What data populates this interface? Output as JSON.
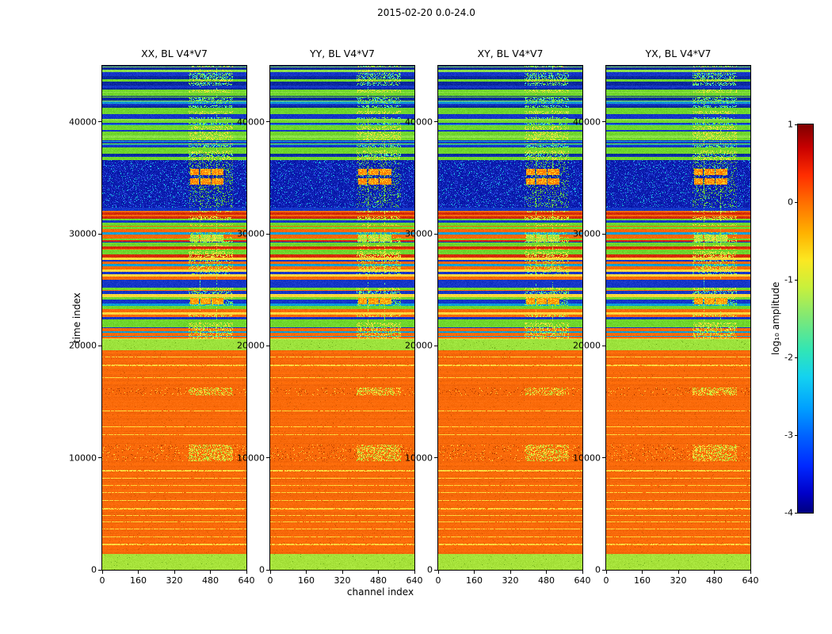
{
  "figure": {
    "title": "2015-02-20 0.0-24.0"
  },
  "axes": {
    "xlabel": "channel index",
    "ylabel": "time index",
    "x_ticks": [
      0,
      160,
      320,
      480,
      640
    ],
    "y_ticks": [
      0,
      10000,
      20000,
      30000,
      40000
    ],
    "x_range": [
      0,
      640
    ],
    "y_range": [
      0,
      45000
    ]
  },
  "panels": [
    {
      "title": "XX, BL V4*V7"
    },
    {
      "title": "YY, BL V4*V7"
    },
    {
      "title": "XY, BL V4*V7"
    },
    {
      "title": "YX, BL V4*V7"
    }
  ],
  "colorbar": {
    "label": "log₁₀ amplitude",
    "ticks": [
      "1",
      "0",
      "-1",
      "-2",
      "-3",
      "-4"
    ],
    "min": -4,
    "max": 1,
    "colormap": "jet"
  },
  "chart_data": {
    "type": "heatmap",
    "title": "2015-02-20 0.0-24.0",
    "subplots": [
      "XX, BL V4*V7",
      "YY, BL V4*V7",
      "XY, BL V4*V7",
      "YX, BL V4*V7"
    ],
    "xlabel": "channel index",
    "ylabel": "time index",
    "xlim": [
      0,
      640
    ],
    "ylim": [
      0,
      45000
    ],
    "colorbar_label": "log10 amplitude",
    "colorbar_range": [
      -4,
      1
    ],
    "colormap": "jet",
    "summary": "Four nearly identical waterfall plots (polarizations XX, YY, XY, YX of baseline V4*V7) of log10 visibility amplitude vs time index (0-45000) and channel index (0-640). Times 0-1400 green (~-2); 1400-19600 saturated orange (~0) with thin yellow lines and speckled yellow bands near 10000 and 16000; green band near 20000; 20600-32300 mixed orange/blue/green/red horizontal stripes; 32300-36600 noisy dark blue (~-3) with bright orange/yellow RFI blocks near channels 390-535 around time 35000; 36600-45000 alternating green/blue stripes. Broadband vertical RFI structure occupies channels ~385-575 in the upper half.",
    "render_spec": {
      "tmax": 45000,
      "xmax": 640,
      "zone": {
        "x0": 385,
        "x1": 575,
        "hot_cols": [
          432,
          506
        ],
        "block_cols": [
          [
            390,
            427
          ],
          [
            437,
            477
          ],
          [
            487,
            533
          ]
        ]
      },
      "colors": {
        "warm_feat": [
          "#ffe13c",
          "#a8e83c"
        ],
        "cool_feat": [
          "#7de83c",
          "#3ce8d8"
        ]
      },
      "bands": [
        {
          "t0": 0,
          "t1": 1400,
          "style": "solid",
          "color": "#a6e23a"
        },
        {
          "t0": 1400,
          "t1": 19600,
          "style": "block",
          "color": "#f8690a",
          "line_color": "#ffd63c",
          "lines": [
            2300,
            3000,
            3700,
            4300,
            4900,
            5500,
            6200,
            6900,
            7600,
            8200,
            8900,
            12100,
            12800,
            14200,
            17200,
            18300,
            19000
          ],
          "speckle": [
            [
              9700,
              11200
            ],
            [
              15600,
              16300
            ]
          ]
        },
        {
          "t0": 19600,
          "t1": 20600,
          "style": "solid",
          "color": "#9ce23c"
        },
        {
          "t0": 20600,
          "t1": 32300,
          "style": "barcode",
          "palette": [
            "#f8690a",
            "#1536c8",
            "#6fd62c",
            "#d42a0a",
            "#ffd63c",
            "#0a9fd8"
          ],
          "weights": [
            0.28,
            0.26,
            0.22,
            0.12,
            0.07,
            0.05
          ],
          "feat_p": 0.5,
          "blobs": [
            {
              "t": [
                23700,
                24300
              ],
              "base": "#ff8c00",
              "spk": "#ffd020"
            },
            {
              "t": [
                29300,
                29900
              ],
              "base": "#9ce23c",
              "spk": "#ffe13c"
            }
          ]
        },
        {
          "t0": 32300,
          "t1": 36600,
          "style": "noise",
          "base": "#0c1cae",
          "blobs": [
            {
              "t": [
                34400,
                34950
              ],
              "base": "#ff7a00",
              "spk": "#ffd020"
            },
            {
              "t": [
                35250,
                35780
              ],
              "base": "#ff7a00",
              "spk": "#ffd020"
            }
          ]
        },
        {
          "t0": 36600,
          "t1": 45000,
          "style": "barcode",
          "palette": [
            "#6fd62c",
            "#1536c8",
            "#0a2a9e",
            "#8ce04a",
            "#129ad4",
            "#f8690a",
            "#e8e83c"
          ],
          "weights": [
            0.34,
            0.26,
            0.14,
            0.1,
            0.06,
            0.06,
            0.04
          ],
          "feat_p": 0.62
        }
      ]
    }
  }
}
